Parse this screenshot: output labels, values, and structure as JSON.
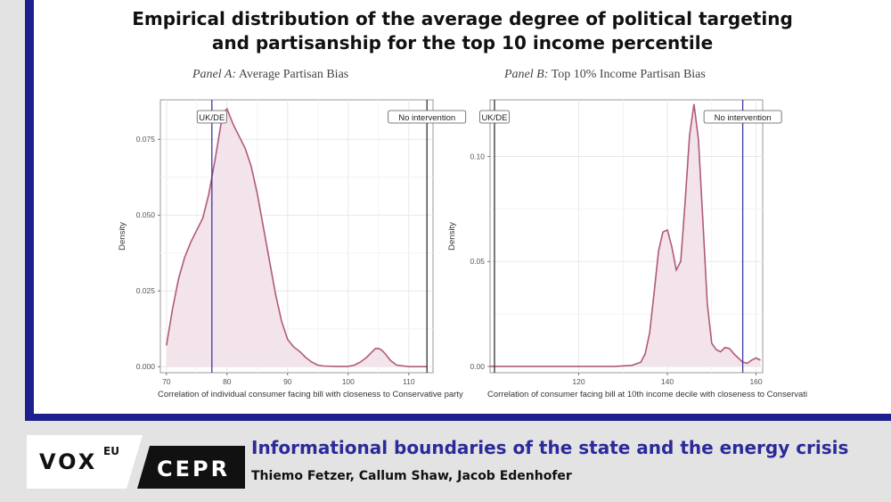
{
  "title_lines": [
    "Empirical distribution of the average degree of political targeting",
    "and partisanship for the top 10 income percentile"
  ],
  "brand": {
    "vox": "VOX",
    "eu": "EU",
    "cepr": "CEPR"
  },
  "footer": {
    "title": "Informational boundaries of the state and the energy crisis",
    "authors": "Thiemo Fetzer, Callum Shaw, Jacob Edenhofer"
  },
  "colors": {
    "frame": "#1e1f8c",
    "density_line": "#b05a7a",
    "density_fill": "#f3e3ea",
    "uk_de_line": "#3a3aa0",
    "no_intervention_line": "#333333"
  },
  "chart_data": [
    {
      "type": "area",
      "panel_label": "Panel A:",
      "title": "Average Partisan Bias",
      "xlabel": "Correlation of individual consumer facing bill with closeness to Conservative party",
      "ylabel": "Density",
      "xlim": [
        69,
        114
      ],
      "ylim": [
        -0.002,
        0.088
      ],
      "xticks": [
        70,
        80,
        90,
        100,
        110
      ],
      "yticks": [
        "0.000",
        "0.025",
        "0.050",
        "0.075"
      ],
      "ytick_values": [
        0,
        0.025,
        0.05,
        0.075
      ],
      "grid": true,
      "series": [
        {
          "x": [
            70,
            71,
            72,
            73,
            74,
            75,
            76,
            77,
            78,
            79,
            79.5,
            80,
            81,
            82,
            83,
            84,
            85,
            86,
            87,
            88,
            89,
            90,
            91,
            92,
            93,
            94,
            95,
            96,
            98,
            100,
            101,
            102,
            103,
            104,
            104.5,
            105,
            105.5,
            106,
            107,
            108,
            110,
            113
          ],
          "y": [
            0.007,
            0.019,
            0.029,
            0.036,
            0.041,
            0.045,
            0.049,
            0.057,
            0.068,
            0.08,
            0.084,
            0.085,
            0.08,
            0.076,
            0.072,
            0.066,
            0.057,
            0.046,
            0.035,
            0.024,
            0.015,
            0.009,
            0.0065,
            0.005,
            0.003,
            0.0015,
            0.0005,
            0.0002,
            0.0001,
            0.0001,
            0.0005,
            0.0015,
            0.003,
            0.005,
            0.006,
            0.006,
            0.0055,
            0.0045,
            0.002,
            0.0005,
            0.0,
            0.0
          ]
        }
      ],
      "vlines": [
        {
          "x": 77.5,
          "label": "UK/DE",
          "color": "uk_de_line"
        },
        {
          "x": 113,
          "label": "No intervention",
          "color": "no_intervention_line"
        }
      ]
    },
    {
      "type": "area",
      "panel_label": "Panel B:",
      "title": "Top 10% Income Partisan Bias",
      "xlabel": "Correlation of consumer facing bill at 10th income decile with closeness to Conservati",
      "ylabel": "Density",
      "xlim": [
        100,
        161.5
      ],
      "ylim": [
        -0.003,
        0.127
      ],
      "xticks": [
        120,
        140,
        160
      ],
      "yticks": [
        "0.00",
        "0.05",
        "0.10"
      ],
      "ytick_values": [
        0,
        0.05,
        0.1
      ],
      "grid": true,
      "series": [
        {
          "x": [
            100,
            128,
            132,
            134,
            135,
            136,
            137,
            138,
            139,
            140,
            141,
            142,
            143,
            144,
            145,
            146,
            147,
            148,
            149,
            150,
            151,
            152,
            153,
            154,
            155,
            156,
            157,
            158,
            159,
            160,
            161
          ],
          "y": [
            0,
            0,
            0.0005,
            0.002,
            0.006,
            0.016,
            0.035,
            0.055,
            0.064,
            0.065,
            0.057,
            0.046,
            0.05,
            0.078,
            0.11,
            0.125,
            0.108,
            0.07,
            0.03,
            0.011,
            0.008,
            0.007,
            0.009,
            0.0085,
            0.006,
            0.004,
            0.002,
            0.0015,
            0.003,
            0.004,
            0.003
          ]
        }
      ],
      "vlines": [
        {
          "x": 101,
          "label": "UK/DE",
          "color": "no_intervention_line"
        },
        {
          "x": 157,
          "label": "No intervention",
          "color": "uk_de_line"
        }
      ]
    }
  ]
}
